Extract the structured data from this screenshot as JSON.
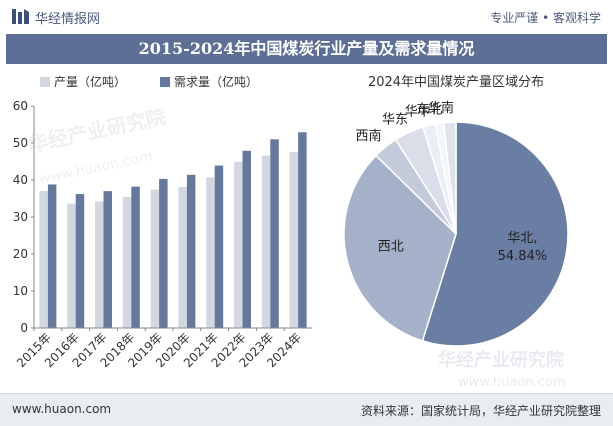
{
  "header": {
    "brand": "华经情报网",
    "slogan": "专业严谨 • 客观科学"
  },
  "title": "2015-2024年中国煤炭行业产量及需求量情况",
  "footer": {
    "url": "www.huaon.com",
    "source": "资料来源：国家统计局，华经产业研究院整理"
  },
  "watermark": {
    "brand": "华经产业研究院",
    "url": "www.huaon.com"
  },
  "colors": {
    "production": "#d2d7e1",
    "demand": "#66799d",
    "title_bg": "#5d6f95"
  },
  "chart_data": [
    {
      "type": "bar",
      "categories": [
        "2015年",
        "2016年",
        "2017年",
        "2018年",
        "2019年",
        "2020年",
        "2021年",
        "2022年",
        "2023年",
        "2024年"
      ],
      "series": [
        {
          "name": "产量（亿吨）",
          "color": "#d2d7e1",
          "values": [
            37.0,
            33.6,
            34.2,
            35.4,
            37.4,
            38.1,
            40.7,
            44.9,
            46.6,
            47.6
          ]
        },
        {
          "name": "需求量（亿吨）",
          "color": "#66799d",
          "values": [
            38.8,
            36.2,
            37.0,
            38.2,
            40.3,
            41.4,
            43.9,
            47.9,
            51.0,
            52.9
          ]
        }
      ],
      "yticks": [
        0,
        10,
        20,
        30,
        40,
        50,
        60
      ],
      "ylim": [
        0,
        60
      ],
      "legend": "top-left",
      "grid": false
    },
    {
      "type": "pie",
      "title": "2024年中国煤炭产量区域分布",
      "slices": [
        {
          "label": "华北",
          "value": 54.84,
          "color": "#6a7da3",
          "label_text": "华北,",
          "value_text": "54.84%"
        },
        {
          "label": "西北",
          "value": 32.5,
          "color": "#a4b1c9"
        },
        {
          "label": "西南",
          "value": 3.6,
          "color": "#c3cbdb"
        },
        {
          "label": "华东",
          "value": 4.3,
          "color": "#d9dee8"
        },
        {
          "label": "华中",
          "value": 1.8,
          "color": "#ebeef4"
        },
        {
          "label": "东北",
          "value": 1.2,
          "color": "#f3f5f8"
        },
        {
          "label": "华南",
          "value": 1.76,
          "color": "#dde2eb"
        }
      ]
    }
  ]
}
